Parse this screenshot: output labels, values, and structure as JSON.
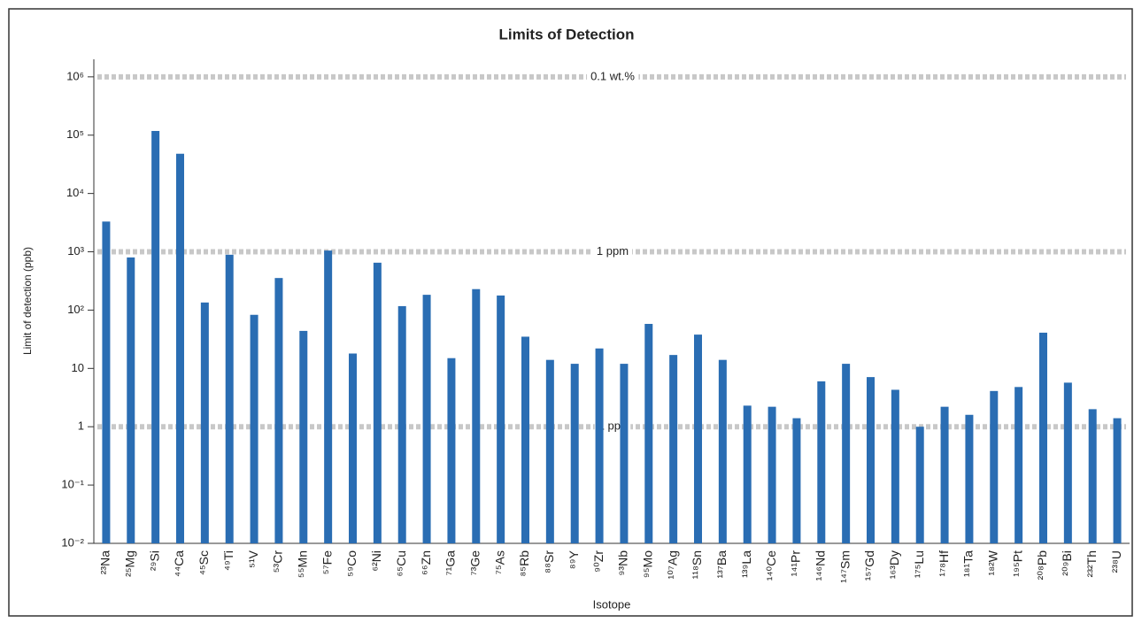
{
  "chart_data": {
    "type": "bar",
    "title": "Limits of Detection",
    "x_label": "Isotope",
    "y_label": "Limit of detection (ppb)",
    "log_scale": true,
    "color": "#2a6db3",
    "categories": [
      "²³Na",
      "²⁵Mg",
      "²⁹Si",
      "⁴⁴Ca",
      "⁴⁵Sc",
      "⁴⁹Ti",
      "⁵¹V",
      "⁵³Cr",
      "⁵⁵Mn",
      "⁵⁷Fe",
      "⁵⁹Co",
      "⁶²Ni",
      "⁶⁵Cu",
      "⁶⁶Zn",
      "⁷¹Ga",
      "⁷³Ge",
      "⁷⁵As",
      "⁸⁵Rb",
      "⁸⁸Sr",
      "⁸⁹Y",
      "⁹⁰Zr",
      "⁹³Nb",
      "⁹⁵Mo",
      "¹⁰⁷Ag",
      "¹¹⁸Sn",
      "¹³⁷Ba",
      "¹³⁹La",
      "¹⁴⁰Ce",
      "¹⁴¹Pr",
      "¹⁴⁶Nd",
      "¹⁴⁷Sm",
      "¹⁵⁷Gd",
      "¹⁶³Dy",
      "¹⁷⁵Lu",
      "¹⁷⁸Hf",
      "¹⁸¹Ta",
      "¹⁸²W",
      "¹⁹⁵Pt",
      "²⁰⁸Pb",
      "²⁰⁹Bi",
      "²³²Th",
      "²³⁸U"
    ],
    "values": [
      3300,
      800,
      118000,
      48000,
      135,
      890,
      83,
      355,
      44,
      1050,
      18,
      650,
      117,
      183,
      15,
      229,
      178,
      35,
      14,
      12,
      22,
      12,
      58,
      17,
      38,
      14,
      2.3,
      2.2,
      1.4,
      6,
      12,
      7.1,
      4.3,
      1,
      2.2,
      1.6,
      4.1,
      4.8,
      41,
      5.7,
      2,
      1.4
    ],
    "ylim": [
      0.01,
      2000000
    ],
    "yticks": [
      {
        "value": 0.01,
        "label": "10⁻²"
      },
      {
        "value": 0.1,
        "label": "10⁻¹"
      },
      1,
      10,
      {
        "value": 100,
        "label": "10²"
      },
      {
        "value": 1000,
        "label": "10³"
      },
      {
        "value": 10000,
        "label": "10⁴"
      },
      {
        "value": 100000,
        "label": "10⁵"
      },
      {
        "value": 1000000,
        "label": "10⁶"
      }
    ],
    "annotations": [
      {
        "value": 1000000,
        "label": "0.1 wt.%"
      },
      {
        "value": 1000,
        "label": "1 ppm"
      },
      {
        "value": 1,
        "label": "1 ppb"
      }
    ]
  }
}
